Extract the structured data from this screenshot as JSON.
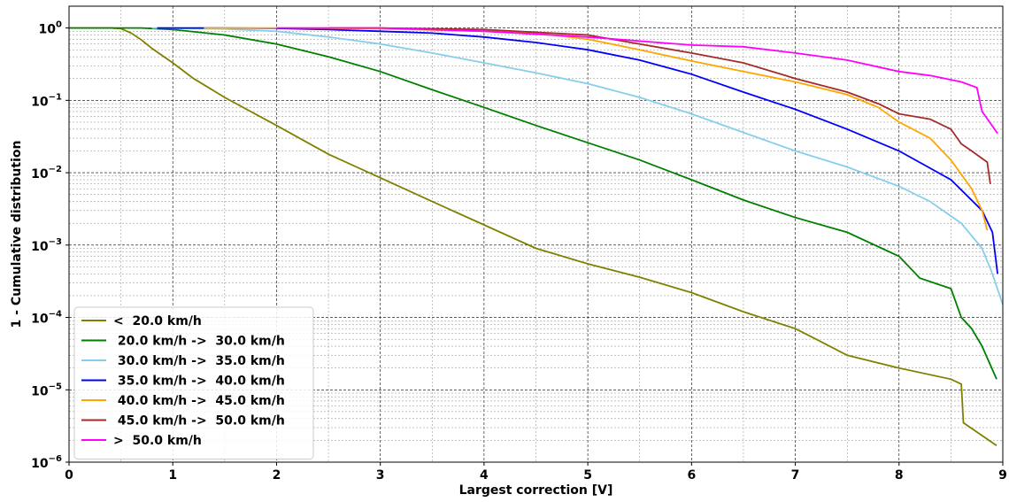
{
  "chart_data": {
    "type": "line",
    "xlabel": "Largest correction [V]",
    "ylabel": "1 - Cumulative distribution",
    "xlim": [
      0,
      9
    ],
    "ylim": [
      1e-06,
      2
    ],
    "yscale": "log",
    "grid": true,
    "legend_position": "lower-left",
    "x_ticks": [
      "0",
      "1",
      "2",
      "3",
      "4",
      "5",
      "6",
      "7",
      "8",
      "9"
    ],
    "y_ticks": [
      {
        "base": "10",
        "exp": "0"
      },
      {
        "base": "10",
        "exp": "−1"
      },
      {
        "base": "10",
        "exp": "−2"
      },
      {
        "base": "10",
        "exp": "−3"
      },
      {
        "base": "10",
        "exp": "−4"
      },
      {
        "base": "10",
        "exp": "−5"
      },
      {
        "base": "10",
        "exp": "−6"
      }
    ],
    "series": [
      {
        "name": "<  20.0 km/h",
        "color": "#808000",
        "points": [
          [
            0,
            1
          ],
          [
            0.4,
            1
          ],
          [
            0.5,
            0.98
          ],
          [
            0.6,
            0.85
          ],
          [
            0.7,
            0.68
          ],
          [
            0.8,
            0.52
          ],
          [
            1,
            0.33
          ],
          [
            1.2,
            0.2
          ],
          [
            1.5,
            0.11
          ],
          [
            2,
            0.045
          ],
          [
            2.5,
            0.018
          ],
          [
            3,
            0.0085
          ],
          [
            3.5,
            0.004
          ],
          [
            4,
            0.0019
          ],
          [
            4.5,
            0.0009
          ],
          [
            5,
            0.00055
          ],
          [
            5.5,
            0.00036
          ],
          [
            6,
            0.00022
          ],
          [
            6.5,
            0.00012
          ],
          [
            7,
            7e-05
          ],
          [
            7.2,
            5e-05
          ],
          [
            7.5,
            3e-05
          ],
          [
            8,
            2e-05
          ],
          [
            8.5,
            1.4e-05
          ],
          [
            8.6,
            1.2e-05
          ],
          [
            8.62,
            3.5e-06
          ],
          [
            8.94,
            1.7e-06
          ]
        ]
      },
      {
        "name": " 20.0 km/h ->  30.0 km/h",
        "color": "#008000",
        "points": [
          [
            0,
            1
          ],
          [
            0.7,
            1
          ],
          [
            1,
            0.95
          ],
          [
            1.5,
            0.8
          ],
          [
            2,
            0.6
          ],
          [
            2.5,
            0.4
          ],
          [
            3,
            0.25
          ],
          [
            3.5,
            0.14
          ],
          [
            4,
            0.08
          ],
          [
            4.5,
            0.045
          ],
          [
            5,
            0.026
          ],
          [
            5.5,
            0.015
          ],
          [
            6,
            0.008
          ],
          [
            6.5,
            0.0042
          ],
          [
            7,
            0.0024
          ],
          [
            7.5,
            0.0015
          ],
          [
            8,
            0.0007
          ],
          [
            8.2,
            0.00035
          ],
          [
            8.5,
            0.00025
          ],
          [
            8.6,
            0.0001
          ],
          [
            8.7,
            7e-05
          ],
          [
            8.8,
            4e-05
          ],
          [
            8.94,
            1.4e-05
          ]
        ]
      },
      {
        "name": " 30.0 km/h ->  35.0 km/h",
        "color": "#87ceeb",
        "points": [
          [
            0.8,
            1
          ],
          [
            1.5,
            0.97
          ],
          [
            2,
            0.9
          ],
          [
            2.5,
            0.75
          ],
          [
            3,
            0.6
          ],
          [
            3.5,
            0.45
          ],
          [
            4,
            0.33
          ],
          [
            4.5,
            0.24
          ],
          [
            5,
            0.17
          ],
          [
            5.5,
            0.11
          ],
          [
            6,
            0.065
          ],
          [
            6.5,
            0.036
          ],
          [
            7,
            0.02
          ],
          [
            7.5,
            0.012
          ],
          [
            8,
            0.0065
          ],
          [
            8.3,
            0.004
          ],
          [
            8.6,
            0.002
          ],
          [
            8.8,
            0.0009
          ],
          [
            8.9,
            0.0004
          ],
          [
            9,
            0.00015
          ]
        ]
      },
      {
        "name": " 35.0 km/h ->  40.0 km/h",
        "color": "#0000ff",
        "points": [
          [
            0.85,
            1
          ],
          [
            1.5,
            1
          ],
          [
            2,
            0.99
          ],
          [
            2.5,
            0.95
          ],
          [
            3,
            0.9
          ],
          [
            3.5,
            0.85
          ],
          [
            4,
            0.75
          ],
          [
            4.5,
            0.63
          ],
          [
            5,
            0.5
          ],
          [
            5.5,
            0.36
          ],
          [
            6,
            0.23
          ],
          [
            6.5,
            0.13
          ],
          [
            7,
            0.075
          ],
          [
            7.5,
            0.04
          ],
          [
            8,
            0.02
          ],
          [
            8.5,
            0.008
          ],
          [
            8.8,
            0.003
          ],
          [
            8.9,
            0.0015
          ],
          [
            8.95,
            0.0004
          ]
        ]
      },
      {
        "name": " 40.0 km/h ->  45.0 km/h",
        "color": "#ffa500",
        "points": [
          [
            1.3,
            1
          ],
          [
            2,
            1
          ],
          [
            3,
            0.98
          ],
          [
            4,
            0.9
          ],
          [
            4.5,
            0.85
          ],
          [
            5,
            0.7
          ],
          [
            5.5,
            0.5
          ],
          [
            6,
            0.35
          ],
          [
            6.5,
            0.25
          ],
          [
            7,
            0.18
          ],
          [
            7.5,
            0.12
          ],
          [
            7.8,
            0.08
          ],
          [
            8,
            0.05
          ],
          [
            8.3,
            0.03
          ],
          [
            8.5,
            0.015
          ],
          [
            8.7,
            0.006
          ],
          [
            8.8,
            0.003
          ],
          [
            8.85,
            0.0016
          ]
        ]
      },
      {
        "name": " 45.0 km/h ->  50.0 km/h",
        "color": "#a52a2a",
        "points": [
          [
            2.5,
            1
          ],
          [
            3,
            1
          ],
          [
            4,
            0.95
          ],
          [
            5,
            0.8
          ],
          [
            5.5,
            0.6
          ],
          [
            6,
            0.45
          ],
          [
            6.5,
            0.33
          ],
          [
            7,
            0.2
          ],
          [
            7.5,
            0.13
          ],
          [
            7.8,
            0.09
          ],
          [
            8,
            0.065
          ],
          [
            8.3,
            0.055
          ],
          [
            8.5,
            0.04
          ],
          [
            8.6,
            0.025
          ],
          [
            8.7,
            0.02
          ],
          [
            8.85,
            0.014
          ],
          [
            8.88,
            0.007
          ]
        ]
      },
      {
        "name": ">  50.0 km/h",
        "color": "#ff00ff",
        "points": [
          [
            2,
            1
          ],
          [
            3,
            1
          ],
          [
            4,
            0.9
          ],
          [
            5,
            0.75
          ],
          [
            6,
            0.58
          ],
          [
            6.5,
            0.55
          ],
          [
            7,
            0.45
          ],
          [
            7.5,
            0.36
          ],
          [
            8,
            0.25
          ],
          [
            8.3,
            0.22
          ],
          [
            8.6,
            0.18
          ],
          [
            8.75,
            0.15
          ],
          [
            8.8,
            0.07
          ],
          [
            8.95,
            0.035
          ]
        ]
      }
    ]
  }
}
